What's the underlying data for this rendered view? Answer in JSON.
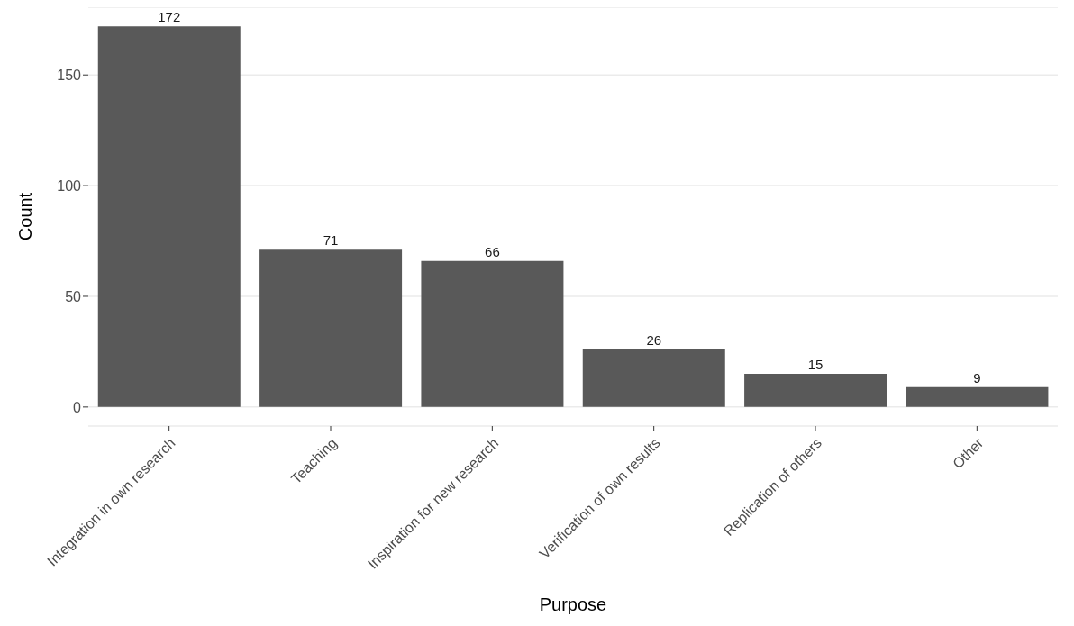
{
  "chart_data": {
    "type": "bar",
    "xlabel": "Purpose",
    "ylabel": "Count",
    "categories": [
      "Integration in own research",
      "Teaching",
      "Inspiration for new research",
      "Verification of own results",
      "Replication of others",
      "Other"
    ],
    "values": [
      172,
      71,
      66,
      26,
      15,
      9
    ],
    "color": "#595959",
    "ylim": [
      -8.6,
      180.6
    ],
    "yticks": [
      0,
      50,
      100,
      150
    ],
    "grid": "y",
    "data_labels": true
  }
}
